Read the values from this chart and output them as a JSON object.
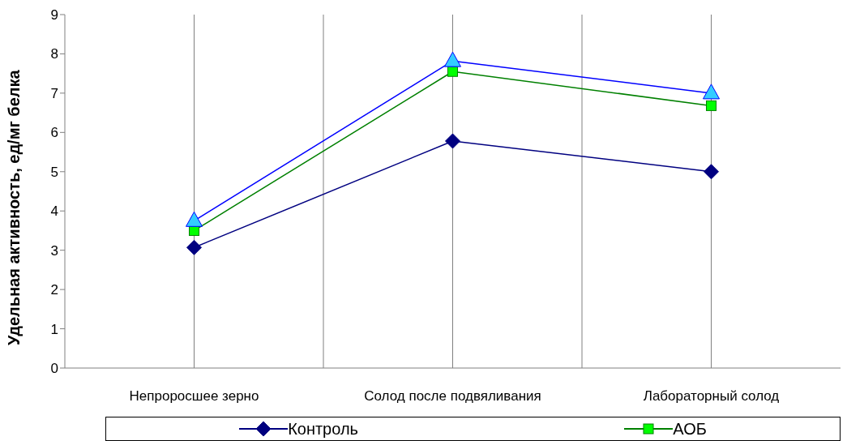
{
  "chart_data": {
    "type": "line",
    "ylabel": "Удельная активность, ед/мг белка",
    "categories": [
      "Непроросшее зерно",
      "Солод после подвяливания",
      "Лабораторный солод"
    ],
    "series": [
      {
        "name": "Контроль",
        "color": "#000080",
        "marker": "diamond",
        "values": [
          3.07,
          5.78,
          5.0
        ]
      },
      {
        "name": "АОБ",
        "color": "#008000",
        "marker": "square",
        "values": [
          3.5,
          7.55,
          6.68
        ]
      },
      {
        "color": "#0000ff",
        "marker": "triangle",
        "values": [
          3.75,
          7.82,
          7.0
        ]
      }
    ],
    "ylim": [
      0,
      9
    ],
    "yticks": [
      0,
      1,
      2,
      3,
      4,
      5,
      6,
      7,
      8,
      9
    ],
    "grid": "x",
    "legend": "bottom",
    "line_style": "solid"
  }
}
